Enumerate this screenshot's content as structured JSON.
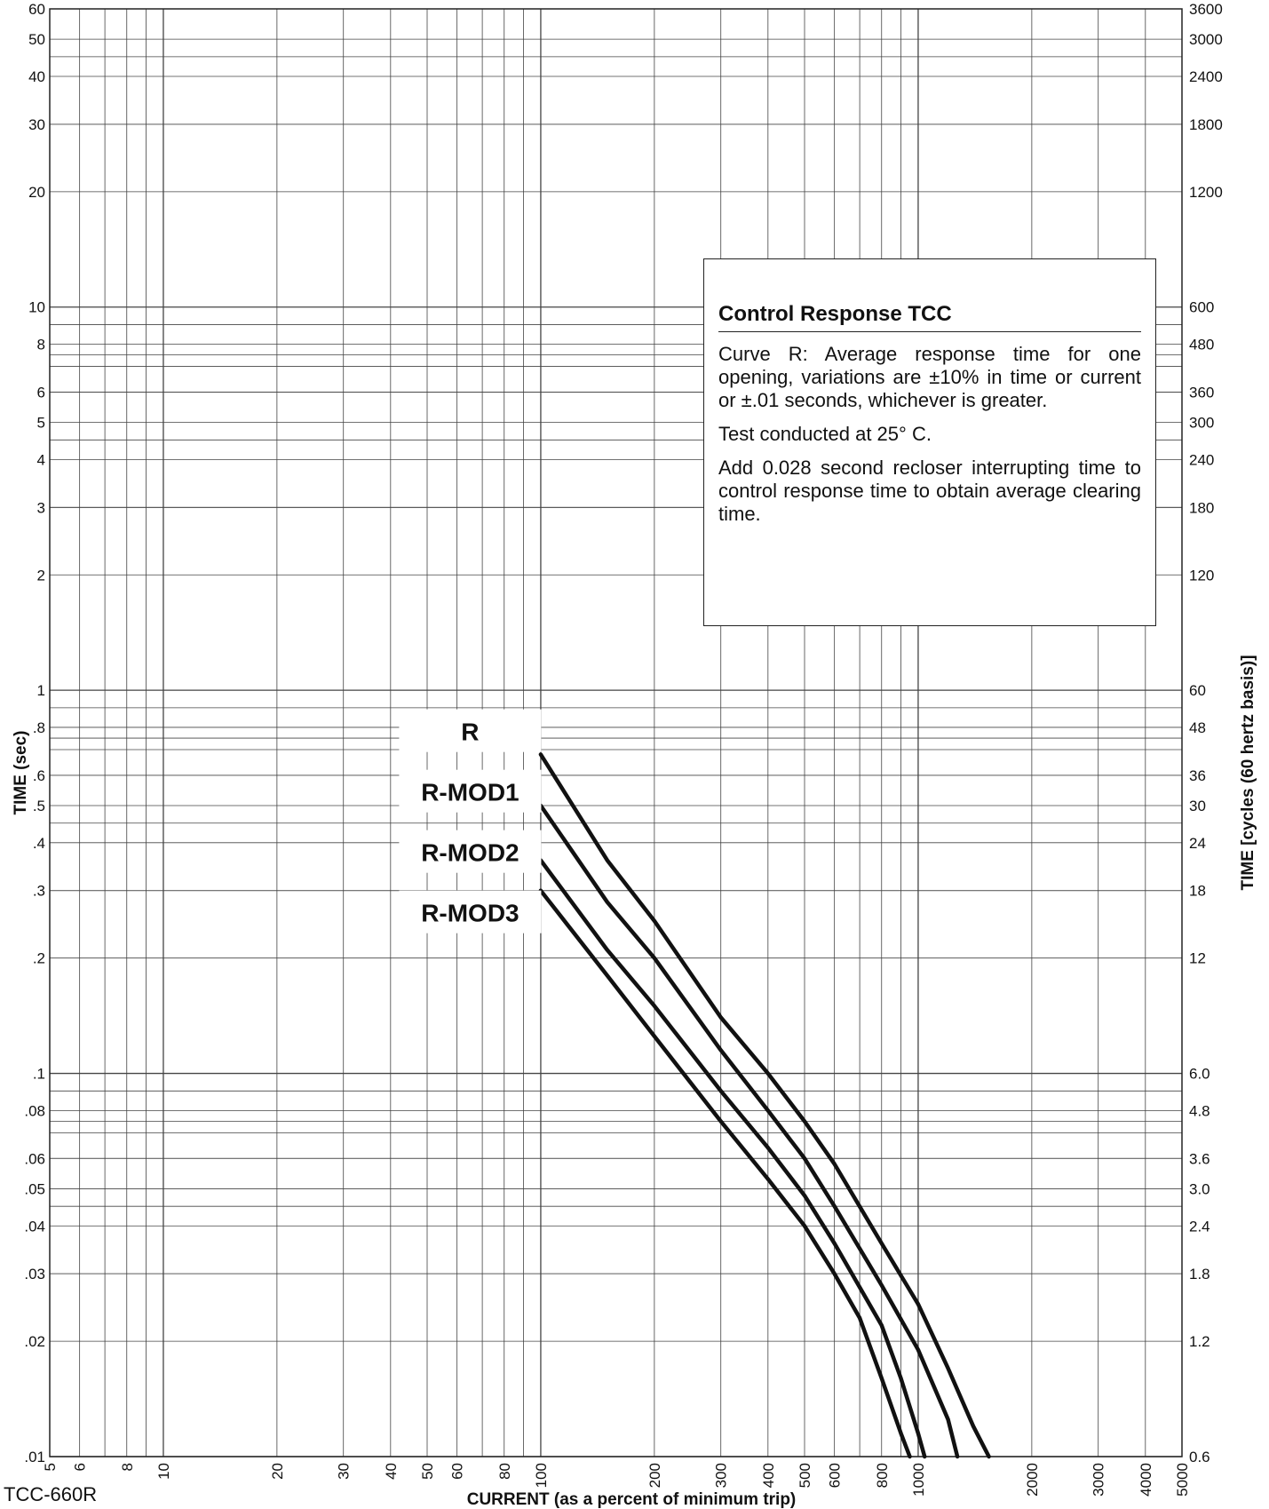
{
  "figure_id": "TCC-660R",
  "infobox": {
    "title": "Control Response TCC",
    "paragraphs": [
      "Curve R: Average response time for one opening, variations are ±10% in time or current or ±.01 seconds, whichever is greater.",
      "Test conducted at 25° C.",
      "Add 0.028 second recloser interrupting time to control response time to obtain average clearing time."
    ]
  },
  "chart_data": {
    "type": "line",
    "x_scale": "log",
    "y_scale": "log",
    "xlabel": "CURRENT (as a percent of minimum trip)",
    "ylabel": "TIME (sec)",
    "ylabel_right": "TIME [cycles (60 hertz basis)]",
    "xlim": [
      5,
      5000
    ],
    "ylim": [
      0.01,
      60
    ],
    "grid": true,
    "x_ticks": [
      {
        "v": 5,
        "label": "5"
      },
      {
        "v": 6,
        "label": "6"
      },
      {
        "v": 8,
        "label": "8"
      },
      {
        "v": 10,
        "label": "10"
      },
      {
        "v": 20,
        "label": "20"
      },
      {
        "v": 30,
        "label": "30"
      },
      {
        "v": 40,
        "label": "40"
      },
      {
        "v": 50,
        "label": "50"
      },
      {
        "v": 60,
        "label": "60"
      },
      {
        "v": 80,
        "label": "80"
      },
      {
        "v": 100,
        "label": "100"
      },
      {
        "v": 200,
        "label": "200"
      },
      {
        "v": 300,
        "label": "300"
      },
      {
        "v": 400,
        "label": "400"
      },
      {
        "v": 500,
        "label": "500"
      },
      {
        "v": 600,
        "label": "600"
      },
      {
        "v": 800,
        "label": "800"
      },
      {
        "v": 1000,
        "label": "1000"
      },
      {
        "v": 2000,
        "label": "2000"
      },
      {
        "v": 3000,
        "label": "3000"
      },
      {
        "v": 4000,
        "label": "4000"
      },
      {
        "v": 5000,
        "label": "5000"
      }
    ],
    "y_ticks_left": [
      {
        "v": 60,
        "label": "60"
      },
      {
        "v": 50,
        "label": "50"
      },
      {
        "v": 40,
        "label": "40"
      },
      {
        "v": 30,
        "label": "30"
      },
      {
        "v": 20,
        "label": "20"
      },
      {
        "v": 10,
        "label": "10"
      },
      {
        "v": 8,
        "label": "8"
      },
      {
        "v": 6,
        "label": "6"
      },
      {
        "v": 5,
        "label": "5"
      },
      {
        "v": 4,
        "label": "4"
      },
      {
        "v": 3,
        "label": "3"
      },
      {
        "v": 2,
        "label": "2"
      },
      {
        "v": 1,
        "label": "1"
      },
      {
        "v": 0.8,
        "label": ".8"
      },
      {
        "v": 0.6,
        "label": ".6"
      },
      {
        "v": 0.5,
        "label": ".5"
      },
      {
        "v": 0.4,
        "label": ".4"
      },
      {
        "v": 0.3,
        "label": ".3"
      },
      {
        "v": 0.2,
        "label": ".2"
      },
      {
        "v": 0.1,
        "label": ".1"
      },
      {
        "v": 0.08,
        "label": ".08"
      },
      {
        "v": 0.06,
        "label": ".06"
      },
      {
        "v": 0.05,
        "label": ".05"
      },
      {
        "v": 0.04,
        "label": ".04"
      },
      {
        "v": 0.03,
        "label": ".03"
      },
      {
        "v": 0.02,
        "label": ".02"
      },
      {
        "v": 0.01,
        "label": ".01"
      }
    ],
    "y_ticks_right": [
      {
        "v": 60,
        "label": "3600"
      },
      {
        "v": 50,
        "label": "3000"
      },
      {
        "v": 40,
        "label": "2400"
      },
      {
        "v": 30,
        "label": "1800"
      },
      {
        "v": 20,
        "label": "1200"
      },
      {
        "v": 10,
        "label": "600"
      },
      {
        "v": 8,
        "label": "480"
      },
      {
        "v": 6,
        "label": "360"
      },
      {
        "v": 5,
        "label": "300"
      },
      {
        "v": 4,
        "label": "240"
      },
      {
        "v": 3,
        "label": "180"
      },
      {
        "v": 2,
        "label": "120"
      },
      {
        "v": 1,
        "label": "60"
      },
      {
        "v": 0.8,
        "label": "48"
      },
      {
        "v": 0.6,
        "label": "36"
      },
      {
        "v": 0.5,
        "label": "30"
      },
      {
        "v": 0.4,
        "label": "24"
      },
      {
        "v": 0.3,
        "label": "18"
      },
      {
        "v": 0.2,
        "label": "12"
      },
      {
        "v": 0.1,
        "label": "6.0"
      },
      {
        "v": 0.08,
        "label": "4.8"
      },
      {
        "v": 0.06,
        "label": "3.6"
      },
      {
        "v": 0.05,
        "label": "3.0"
      },
      {
        "v": 0.04,
        "label": "2.4"
      },
      {
        "v": 0.03,
        "label": "1.8"
      },
      {
        "v": 0.02,
        "label": "1.2"
      },
      {
        "v": 0.01,
        "label": "0.6"
      }
    ],
    "series": [
      {
        "name": "R",
        "points": [
          [
            100,
            0.68
          ],
          [
            150,
            0.36
          ],
          [
            200,
            0.25
          ],
          [
            300,
            0.14
          ],
          [
            400,
            0.1
          ],
          [
            500,
            0.075
          ],
          [
            600,
            0.058
          ],
          [
            800,
            0.036
          ],
          [
            1000,
            0.025
          ],
          [
            1200,
            0.017
          ],
          [
            1400,
            0.012
          ],
          [
            1540,
            0.01
          ]
        ]
      },
      {
        "name": "R-MOD1",
        "points": [
          [
            100,
            0.5
          ],
          [
            150,
            0.28
          ],
          [
            200,
            0.2
          ],
          [
            300,
            0.115
          ],
          [
            400,
            0.08
          ],
          [
            500,
            0.06
          ],
          [
            600,
            0.045
          ],
          [
            800,
            0.028
          ],
          [
            1000,
            0.019
          ],
          [
            1200,
            0.0125
          ],
          [
            1270,
            0.01
          ]
        ]
      },
      {
        "name": "R-MOD2",
        "points": [
          [
            100,
            0.36
          ],
          [
            150,
            0.21
          ],
          [
            200,
            0.15
          ],
          [
            300,
            0.09
          ],
          [
            400,
            0.064
          ],
          [
            500,
            0.048
          ],
          [
            600,
            0.036
          ],
          [
            800,
            0.022
          ],
          [
            900,
            0.016
          ],
          [
            1000,
            0.0115
          ],
          [
            1040,
            0.01
          ]
        ]
      },
      {
        "name": "R-MOD3",
        "points": [
          [
            100,
            0.3
          ],
          [
            150,
            0.18
          ],
          [
            200,
            0.125
          ],
          [
            300,
            0.075
          ],
          [
            400,
            0.053
          ],
          [
            500,
            0.04
          ],
          [
            600,
            0.03
          ],
          [
            700,
            0.023
          ],
          [
            800,
            0.016
          ],
          [
            900,
            0.0115
          ],
          [
            950,
            0.01
          ]
        ]
      }
    ]
  }
}
